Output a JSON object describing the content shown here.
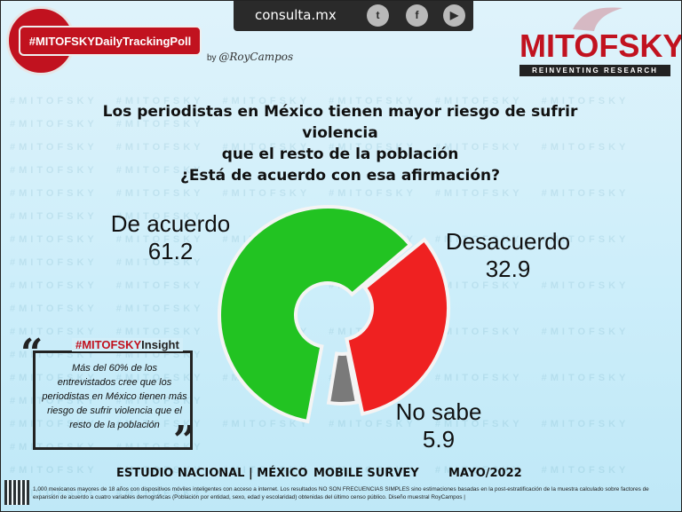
{
  "header": {
    "site": "consulta.mx",
    "social_icons": [
      "twitter-icon",
      "facebook-icon",
      "youtube-icon"
    ],
    "hashtag": "#MITOFSKYDailyTrackingPoll",
    "byline_prefix": "by",
    "byline_author": "@RoyCampos",
    "brand_name": "MITOFSKY",
    "brand_tag": "REINVENTING RESEARCH"
  },
  "colors": {
    "green": "#22c322",
    "red": "#ef2121",
    "gray": "#7a7a7a",
    "brand_red": "#c1121f"
  },
  "chart_data": {
    "type": "pie",
    "variant": "donut",
    "title_lines": [
      "Los periodistas en México tienen mayor riesgo de sufrir violencia",
      "que el resto de la población",
      "¿Está de acuerdo con esa afirmación?"
    ],
    "slices": [
      {
        "label": "De acuerdo",
        "value": 61.2,
        "color": "#22c322"
      },
      {
        "label": "Desacuerdo",
        "value": 32.9,
        "color": "#ef2121"
      },
      {
        "label": "No sabe",
        "value": 5.9,
        "color": "#7a7a7a"
      }
    ],
    "legend": "none"
  },
  "insight": {
    "head_red": "#MITOFSKY",
    "head_dark": "Insight",
    "text": "Más del 60% de los entrevistados cree que los periodistas en México tienen más riesgo de sufrir violencia que el resto de la población"
  },
  "footer": {
    "study": "ESTUDIO NACIONAL | MÉXICO",
    "method": "MOBILE SURVEY",
    "date": "MAYO/2022",
    "note": "1,000 mexicanos mayores de 18 años con dispositivos móviles inteligentes con acceso a internet. Los resultados NO SON FRECUENCIAS SIMPLES sino estimaciones basadas en la post-estratificación de la muestra calculado sobre factores de expansión de acuerdo a cuatro variables demográficas (Población por entidad, sexo, edad y escolaridad) obtenidas del último censo público. Diseño muestral RoyCampos |"
  }
}
